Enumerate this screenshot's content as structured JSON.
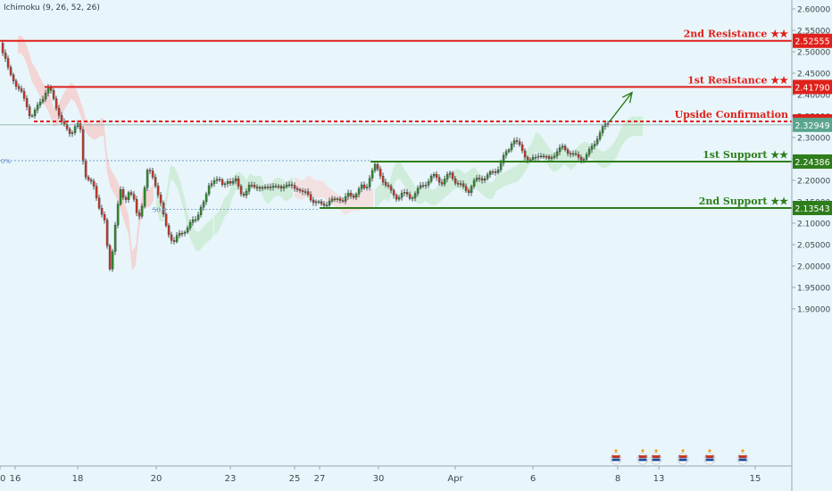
{
  "indicator": "Ichimoku (9, 26, 52, 26)",
  "chart_data": {
    "type": "candlestick",
    "ylim": [
      1.875,
      2.615
    ],
    "y_ticks": [
      "2.60000",
      "2.55000",
      "2.50000",
      "2.45000",
      "2.40000",
      "2.35000",
      "2.30000",
      "2.25000",
      "2.20000",
      "2.15000",
      "2.10000",
      "2.05000",
      "2.00000",
      "1.95000",
      "1.90000"
    ],
    "x_ticks": [
      "16",
      "18",
      "20",
      "23",
      "25",
      "27",
      "30",
      "Apr",
      "6",
      "8",
      "13",
      "15",
      "20"
    ],
    "levels": [
      {
        "label": "2nd Resistance ★★",
        "value": "2.52555",
        "color": "#e0201b",
        "style": "solid"
      },
      {
        "label": "1st Resistance ★★",
        "value": "2.41790",
        "color": "#e0201b",
        "style": "solid"
      },
      {
        "label": "Upside Confirmation",
        "value": "2.33750",
        "color": "#e0201b",
        "style": "dashed"
      },
      {
        "label": "1st Support ★★",
        "value": "2.24386",
        "color": "#2e7d1b",
        "style": "solid"
      },
      {
        "label": "2nd Support ★★",
        "value": "2.13543",
        "color": "#2e7d1b",
        "style": "solid"
      }
    ],
    "current_price": {
      "value": "2.32949",
      "color": "#5aa58e"
    },
    "fib_labels": [
      "0%",
      "50.0"
    ],
    "price_path": [
      [
        0,
        2.52
      ],
      [
        5,
        2.49
      ],
      [
        10,
        2.455
      ],
      [
        15,
        2.44
      ],
      [
        20,
        2.415
      ],
      [
        25,
        2.4
      ],
      [
        30,
        2.38
      ],
      [
        35,
        2.345
      ],
      [
        40,
        2.36
      ],
      [
        45,
        2.385
      ],
      [
        50,
        2.4
      ],
      [
        55,
        2.415
      ],
      [
        60,
        2.395
      ],
      [
        65,
        2.365
      ],
      [
        70,
        2.33
      ],
      [
        75,
        2.32
      ],
      [
        80,
        2.312
      ],
      [
        85,
        2.325
      ],
      [
        90,
        2.328
      ],
      [
        93,
        2.255
      ],
      [
        96,
        2.215
      ],
      [
        100,
        2.2
      ],
      [
        105,
        2.185
      ],
      [
        110,
        2.15
      ],
      [
        115,
        2.12
      ],
      [
        118,
        2.1
      ],
      [
        121,
        2.03
      ],
      [
        124,
        1.985
      ],
      [
        127,
        2.05
      ],
      [
        130,
        2.11
      ],
      [
        135,
        2.175
      ],
      [
        140,
        2.15
      ],
      [
        145,
        2.18
      ],
      [
        150,
        2.155
      ],
      [
        155,
        2.105
      ],
      [
        160,
        2.15
      ],
      [
        165,
        2.22
      ],
      [
        170,
        2.215
      ],
      [
        175,
        2.19
      ],
      [
        180,
        2.15
      ],
      [
        185,
        2.1
      ],
      [
        190,
        2.075
      ],
      [
        195,
        2.055
      ],
      [
        200,
        2.07
      ],
      [
        205,
        2.08
      ],
      [
        210,
        2.09
      ],
      [
        215,
        2.1
      ],
      [
        220,
        2.11
      ],
      [
        225,
        2.14
      ],
      [
        230,
        2.15
      ],
      [
        235,
        2.19
      ],
      [
        240,
        2.205
      ],
      [
        245,
        2.2
      ],
      [
        250,
        2.185
      ],
      [
        255,
        2.205
      ],
      [
        260,
        2.19
      ],
      [
        265,
        2.2
      ],
      [
        270,
        2.175
      ],
      [
        275,
        2.165
      ],
      [
        280,
        2.185
      ],
      [
        285,
        2.19
      ],
      [
        290,
        2.185
      ],
      [
        295,
        2.175
      ],
      [
        300,
        2.188
      ],
      [
        305,
        2.19
      ],
      [
        310,
        2.18
      ],
      [
        315,
        2.182
      ],
      [
        320,
        2.195
      ],
      [
        325,
        2.185
      ],
      [
        330,
        2.18
      ],
      [
        335,
        2.185
      ],
      [
        340,
        2.17
      ],
      [
        345,
        2.165
      ],
      [
        350,
        2.155
      ],
      [
        355,
        2.15
      ],
      [
        360,
        2.14
      ],
      [
        365,
        2.145
      ],
      [
        370,
        2.155
      ],
      [
        375,
        2.15
      ],
      [
        380,
        2.16
      ],
      [
        385,
        2.155
      ],
      [
        390,
        2.165
      ],
      [
        395,
        2.16
      ],
      [
        400,
        2.175
      ],
      [
        405,
        2.185
      ],
      [
        410,
        2.175
      ],
      [
        415,
        2.215
      ],
      [
        420,
        2.235
      ],
      [
        425,
        2.215
      ],
      [
        430,
        2.2
      ],
      [
        435,
        2.185
      ],
      [
        440,
        2.165
      ],
      [
        445,
        2.16
      ],
      [
        450,
        2.17
      ],
      [
        455,
        2.165
      ],
      [
        460,
        2.16
      ],
      [
        465,
        2.17
      ],
      [
        470,
        2.18
      ],
      [
        475,
        2.19
      ],
      [
        480,
        2.2
      ],
      [
        485,
        2.21
      ],
      [
        490,
        2.205
      ],
      [
        495,
        2.195
      ],
      [
        500,
        2.205
      ],
      [
        505,
        2.215
      ],
      [
        510,
        2.2
      ],
      [
        515,
        2.19
      ],
      [
        520,
        2.18
      ],
      [
        525,
        2.175
      ],
      [
        530,
        2.195
      ],
      [
        535,
        2.2
      ],
      [
        540,
        2.205
      ],
      [
        545,
        2.21
      ],
      [
        550,
        2.215
      ],
      [
        555,
        2.22
      ],
      [
        560,
        2.235
      ],
      [
        565,
        2.255
      ],
      [
        570,
        2.27
      ],
      [
        575,
        2.3
      ],
      [
        580,
        2.285
      ],
      [
        585,
        2.27
      ],
      [
        590,
        2.255
      ],
      [
        595,
        2.245
      ],
      [
        600,
        2.25
      ],
      [
        605,
        2.265
      ],
      [
        610,
        2.255
      ],
      [
        615,
        2.245
      ],
      [
        620,
        2.26
      ],
      [
        625,
        2.27
      ],
      [
        630,
        2.275
      ],
      [
        635,
        2.27
      ],
      [
        640,
        2.265
      ],
      [
        645,
        2.255
      ],
      [
        650,
        2.25
      ],
      [
        655,
        2.255
      ],
      [
        660,
        2.265
      ],
      [
        665,
        2.28
      ],
      [
        670,
        2.305
      ],
      [
        675,
        2.32
      ],
      [
        680,
        2.33
      ]
    ],
    "projection": [
      [
        682,
        2.335
      ],
      [
        708,
        2.405
      ]
    ]
  }
}
